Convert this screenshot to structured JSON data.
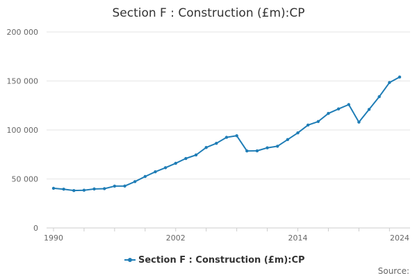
{
  "chart_data": {
    "type": "line",
    "title": "Section F : Construction (£m):CP",
    "xlabel": "",
    "ylabel": "",
    "source_label": "Source:",
    "color": "#1f7db6",
    "grid": "horizontal",
    "legend_position": "bottom-center",
    "xlim": [
      1990,
      2024
    ],
    "ylim": [
      0,
      200000
    ],
    "x_ticks": [
      1990,
      2002,
      2014,
      2024
    ],
    "x_tick_labels": [
      "1990",
      "2002",
      "2014",
      "2024"
    ],
    "y_ticks": [
      0,
      50000,
      100000,
      150000,
      200000
    ],
    "y_tick_labels": [
      "0",
      "50 000",
      "100 000",
      "150 000",
      "200 000"
    ],
    "series": [
      {
        "name": "Section F : Construction (£m):CP",
        "x": [
          1990,
          1991,
          1992,
          1993,
          1994,
          1995,
          1996,
          1997,
          1998,
          1999,
          2000,
          2001,
          2002,
          2003,
          2004,
          2005,
          2006,
          2007,
          2008,
          2009,
          2010,
          2011,
          2012,
          2013,
          2014,
          2015,
          2016,
          2017,
          2018,
          2019,
          2020,
          2021,
          2022,
          2023,
          2024
        ],
        "values": [
          40500,
          39600,
          38200,
          38500,
          39800,
          40100,
          42700,
          42800,
          47300,
          52500,
          57300,
          61500,
          66000,
          70900,
          74500,
          82100,
          86400,
          92500,
          94100,
          78600,
          78700,
          81800,
          83400,
          90200,
          97000,
          105000,
          108600,
          116900,
          121500,
          125900,
          108000,
          121000,
          134000,
          148400,
          154000
        ]
      }
    ]
  }
}
